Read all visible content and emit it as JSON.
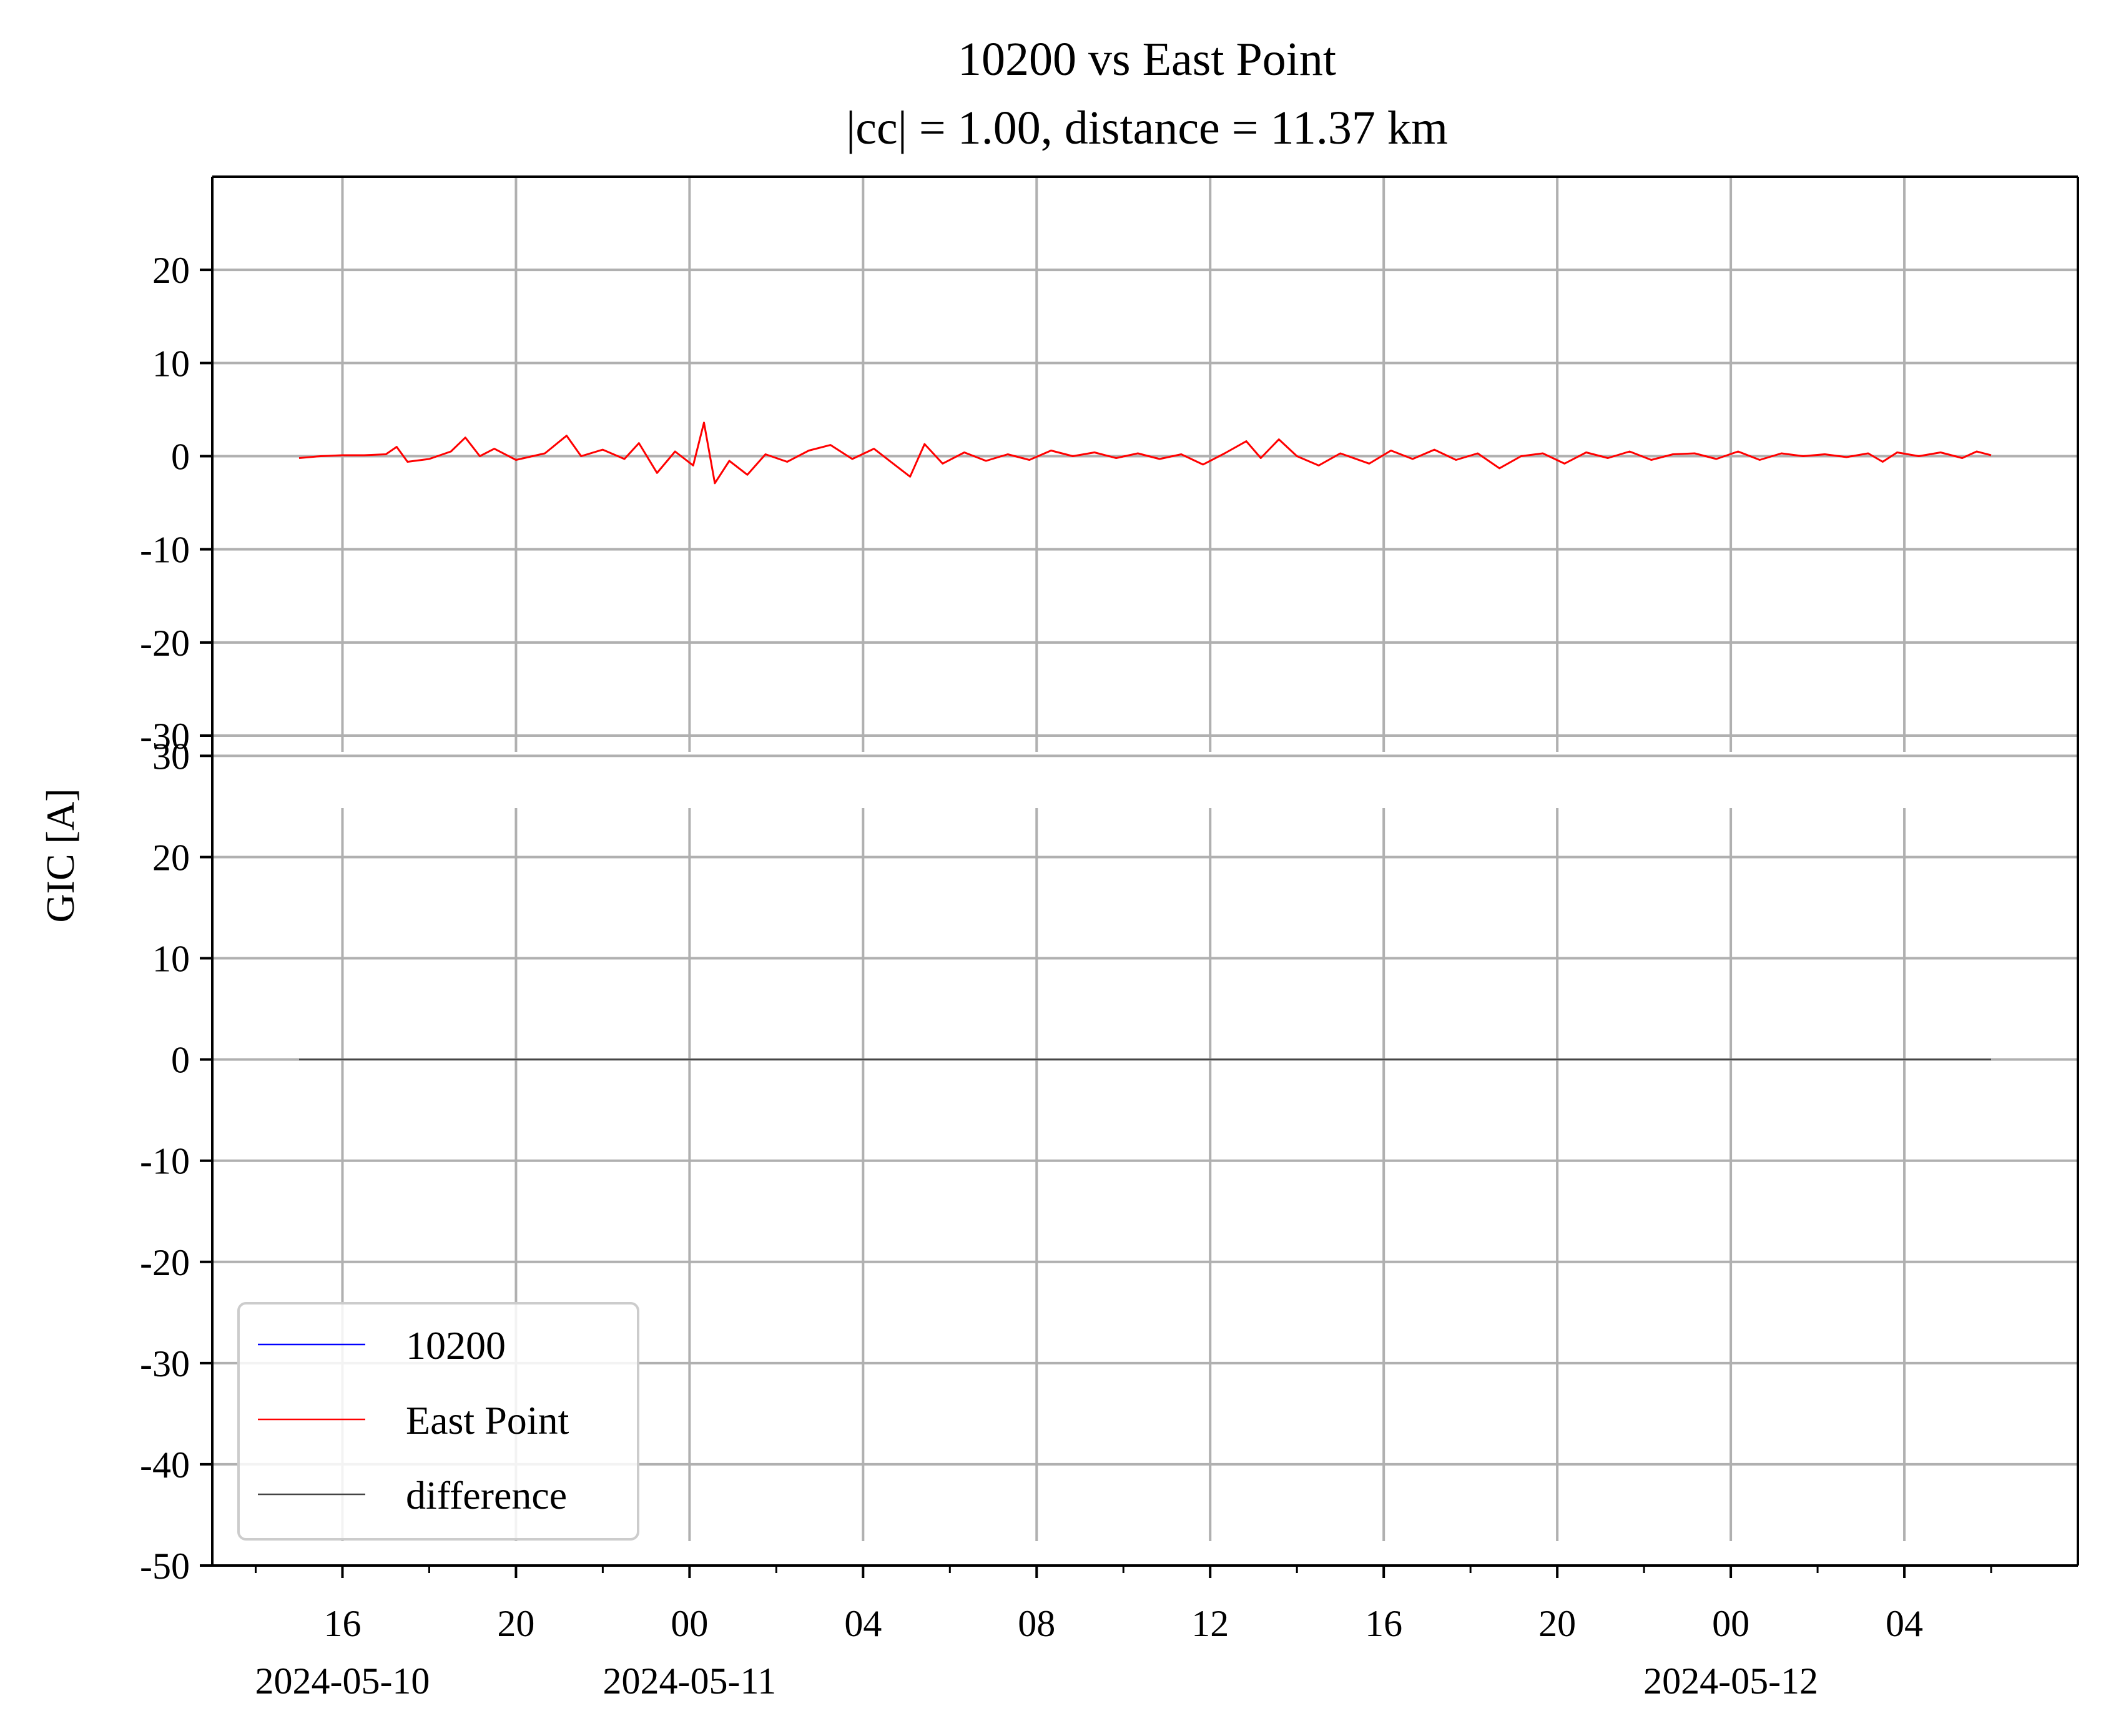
{
  "chart_data": {
    "type": "line",
    "title": "10200 vs East Point",
    "subtitle": "|cc| = 1.00, distance = 11.37 km",
    "ylabel": "GIC [A]",
    "xlabel": "",
    "grid": true,
    "legend_placement": "lower-left",
    "legend": [
      "10200",
      "East Point",
      "difference"
    ],
    "x_range": [
      "2024-05-10T13:00",
      "2024-05-12T08:00"
    ],
    "x_ticks": [
      {
        "t": "2024-05-10T16:00",
        "label": "16",
        "date": "2024-05-10"
      },
      {
        "t": "2024-05-10T20:00",
        "label": "20",
        "date": ""
      },
      {
        "t": "2024-05-11T00:00",
        "label": "00",
        "date": "2024-05-11"
      },
      {
        "t": "2024-05-11T04:00",
        "label": "04",
        "date": ""
      },
      {
        "t": "2024-05-11T08:00",
        "label": "08",
        "date": ""
      },
      {
        "t": "2024-05-11T12:00",
        "label": "12",
        "date": ""
      },
      {
        "t": "2024-05-11T16:00",
        "label": "16",
        "date": ""
      },
      {
        "t": "2024-05-11T20:00",
        "label": "20",
        "date": ""
      },
      {
        "t": "2024-05-12T00:00",
        "label": "00",
        "date": "2024-05-12"
      },
      {
        "t": "2024-05-12T04:00",
        "label": "04",
        "date": ""
      }
    ],
    "panels": [
      {
        "ylim": [
          -30,
          30
        ],
        "yticks": [
          -30,
          -20,
          -10,
          0,
          10,
          20
        ],
        "series": [
          {
            "name": "10200",
            "color": "#0000ff",
            "points": []
          },
          {
            "name": "East Point",
            "color": "#ff0000",
            "points": [
              [
                "2024-05-10T15:00",
                -0.2
              ],
              [
                "2024-05-10T15:30",
                0.0
              ],
              [
                "2024-05-10T16:00",
                0.1
              ],
              [
                "2024-05-10T16:30",
                0.1
              ],
              [
                "2024-05-10T17:00",
                0.2
              ],
              [
                "2024-05-10T17:15",
                1.0
              ],
              [
                "2024-05-10T17:30",
                -0.6
              ],
              [
                "2024-05-10T18:00",
                -0.3
              ],
              [
                "2024-05-10T18:30",
                0.5
              ],
              [
                "2024-05-10T18:50",
                2.0
              ],
              [
                "2024-05-10T19:10",
                0.0
              ],
              [
                "2024-05-10T19:30",
                0.8
              ],
              [
                "2024-05-10T20:00",
                -0.4
              ],
              [
                "2024-05-10T20:40",
                0.3
              ],
              [
                "2024-05-10T21:10",
                2.2
              ],
              [
                "2024-05-10T21:30",
                0.0
              ],
              [
                "2024-05-10T22:00",
                0.7
              ],
              [
                "2024-05-10T22:30",
                -0.3
              ],
              [
                "2024-05-10T22:50",
                1.4
              ],
              [
                "2024-05-10T23:15",
                -1.8
              ],
              [
                "2024-05-10T23:40",
                0.5
              ],
              [
                "2024-05-11T00:05",
                -1.0
              ],
              [
                "2024-05-11T00:20",
                3.6
              ],
              [
                "2024-05-11T00:35",
                -2.9
              ],
              [
                "2024-05-11T00:55",
                -0.5
              ],
              [
                "2024-05-11T01:20",
                -2.0
              ],
              [
                "2024-05-11T01:45",
                0.2
              ],
              [
                "2024-05-11T02:15",
                -0.6
              ],
              [
                "2024-05-11T02:45",
                0.6
              ],
              [
                "2024-05-11T03:15",
                1.2
              ],
              [
                "2024-05-11T03:45",
                -0.3
              ],
              [
                "2024-05-11T04:15",
                0.8
              ],
              [
                "2024-05-11T04:45",
                -1.0
              ],
              [
                "2024-05-11T05:05",
                -2.2
              ],
              [
                "2024-05-11T05:25",
                1.3
              ],
              [
                "2024-05-11T05:50",
                -0.8
              ],
              [
                "2024-05-11T06:20",
                0.4
              ],
              [
                "2024-05-11T06:50",
                -0.5
              ],
              [
                "2024-05-11T07:20",
                0.2
              ],
              [
                "2024-05-11T07:50",
                -0.4
              ],
              [
                "2024-05-11T08:20",
                0.6
              ],
              [
                "2024-05-11T08:50",
                0.0
              ],
              [
                "2024-05-11T09:20",
                0.4
              ],
              [
                "2024-05-11T09:50",
                -0.2
              ],
              [
                "2024-05-11T10:20",
                0.3
              ],
              [
                "2024-05-11T10:50",
                -0.3
              ],
              [
                "2024-05-11T11:20",
                0.2
              ],
              [
                "2024-05-11T11:50",
                -0.9
              ],
              [
                "2024-05-11T12:20",
                0.3
              ],
              [
                "2024-05-11T12:50",
                1.6
              ],
              [
                "2024-05-11T13:10",
                -0.2
              ],
              [
                "2024-05-11T13:35",
                1.8
              ],
              [
                "2024-05-11T14:00",
                0.0
              ],
              [
                "2024-05-11T14:30",
                -1.0
              ],
              [
                "2024-05-11T15:00",
                0.3
              ],
              [
                "2024-05-11T15:40",
                -0.8
              ],
              [
                "2024-05-11T16:10",
                0.6
              ],
              [
                "2024-05-11T16:40",
                -0.3
              ],
              [
                "2024-05-11T17:10",
                0.7
              ],
              [
                "2024-05-11T17:40",
                -0.4
              ],
              [
                "2024-05-11T18:10",
                0.3
              ],
              [
                "2024-05-11T18:40",
                -1.3
              ],
              [
                "2024-05-11T19:10",
                0.0
              ],
              [
                "2024-05-11T19:40",
                0.3
              ],
              [
                "2024-05-11T20:10",
                -0.8
              ],
              [
                "2024-05-11T20:40",
                0.4
              ],
              [
                "2024-05-11T21:10",
                -0.2
              ],
              [
                "2024-05-11T21:40",
                0.5
              ],
              [
                "2024-05-11T22:10",
                -0.4
              ],
              [
                "2024-05-11T22:40",
                0.2
              ],
              [
                "2024-05-11T23:10",
                0.3
              ],
              [
                "2024-05-11T23:40",
                -0.3
              ],
              [
                "2024-05-12T00:10",
                0.5
              ],
              [
                "2024-05-12T00:40",
                -0.4
              ],
              [
                "2024-05-12T01:10",
                0.3
              ],
              [
                "2024-05-12T01:40",
                0.0
              ],
              [
                "2024-05-12T02:10",
                0.2
              ],
              [
                "2024-05-12T02:40",
                -0.1
              ],
              [
                "2024-05-12T03:10",
                0.3
              ],
              [
                "2024-05-12T03:30",
                -0.6
              ],
              [
                "2024-05-12T03:50",
                0.4
              ],
              [
                "2024-05-12T04:20",
                0.0
              ],
              [
                "2024-05-12T04:50",
                0.4
              ],
              [
                "2024-05-12T05:20",
                -0.2
              ],
              [
                "2024-05-12T05:40",
                0.5
              ],
              [
                "2024-05-12T06:00",
                0.1
              ]
            ]
          }
        ]
      },
      {
        "ylim": [
          -50,
          32
        ],
        "yticks": [
          -50,
          -40,
          -30,
          -20,
          -10,
          0,
          10,
          20,
          30
        ],
        "series": [
          {
            "name": "difference",
            "color": "#444444",
            "points": [
              [
                "2024-05-10T15:00",
                0.0
              ],
              [
                "2024-05-12T06:00",
                0.0
              ]
            ]
          }
        ]
      }
    ]
  }
}
